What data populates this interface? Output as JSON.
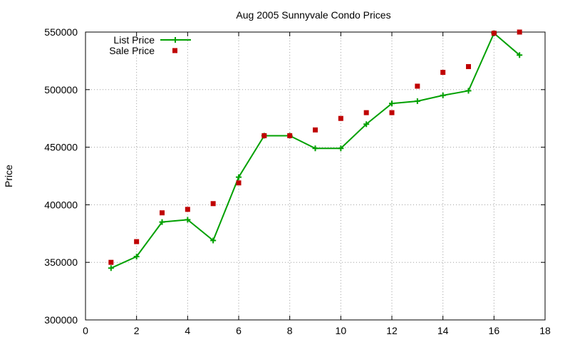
{
  "chart_data": {
    "type": "line",
    "title": "Aug 2005 Sunnyvale Condo Prices",
    "xlabel": "",
    "ylabel": "Price",
    "xlim": [
      0,
      18
    ],
    "ylim": [
      300000,
      550000
    ],
    "xticks": [
      0,
      2,
      4,
      6,
      8,
      10,
      12,
      14,
      16,
      18
    ],
    "yticks": [
      300000,
      350000,
      400000,
      450000,
      500000,
      550000
    ],
    "grid": true,
    "legend_position": "top-left",
    "series": [
      {
        "name": "List Price",
        "style": "line-with-plus-markers",
        "color": "#00a000",
        "points": [
          {
            "x": 1,
            "y": 345000
          },
          {
            "x": 2,
            "y": 355000
          },
          {
            "x": 3,
            "y": 385000
          },
          {
            "x": 4,
            "y": 387000
          },
          {
            "x": 5,
            "y": 369000
          },
          {
            "x": 6,
            "y": 424000
          },
          {
            "x": 7,
            "y": 460000
          },
          {
            "x": 8,
            "y": 460000
          },
          {
            "x": 9,
            "y": 449000
          },
          {
            "x": 10,
            "y": 449000
          },
          {
            "x": 11,
            "y": 470000
          },
          {
            "x": 12,
            "y": 488000
          },
          {
            "x": 13,
            "y": 490000
          },
          {
            "x": 14,
            "y": 495000
          },
          {
            "x": 15,
            "y": 499000
          },
          {
            "x": 16,
            "y": 549000
          },
          {
            "x": 17,
            "y": 530000
          }
        ]
      },
      {
        "name": "Sale Price",
        "style": "square-markers",
        "color": "#c00000",
        "points": [
          {
            "x": 1,
            "y": 350000
          },
          {
            "x": 2,
            "y": 368000
          },
          {
            "x": 3,
            "y": 393000
          },
          {
            "x": 4,
            "y": 396000
          },
          {
            "x": 5,
            "y": 401000
          },
          {
            "x": 6,
            "y": 419000
          },
          {
            "x": 7,
            "y": 460000
          },
          {
            "x": 8,
            "y": 460000
          },
          {
            "x": 9,
            "y": 465000
          },
          {
            "x": 10,
            "y": 475000
          },
          {
            "x": 11,
            "y": 480000
          },
          {
            "x": 12,
            "y": 480000
          },
          {
            "x": 13,
            "y": 503000
          },
          {
            "x": 14,
            "y": 515000
          },
          {
            "x": 15,
            "y": 520000
          },
          {
            "x": 16,
            "y": 549000
          },
          {
            "x": 17,
            "y": 550000
          }
        ]
      }
    ]
  }
}
